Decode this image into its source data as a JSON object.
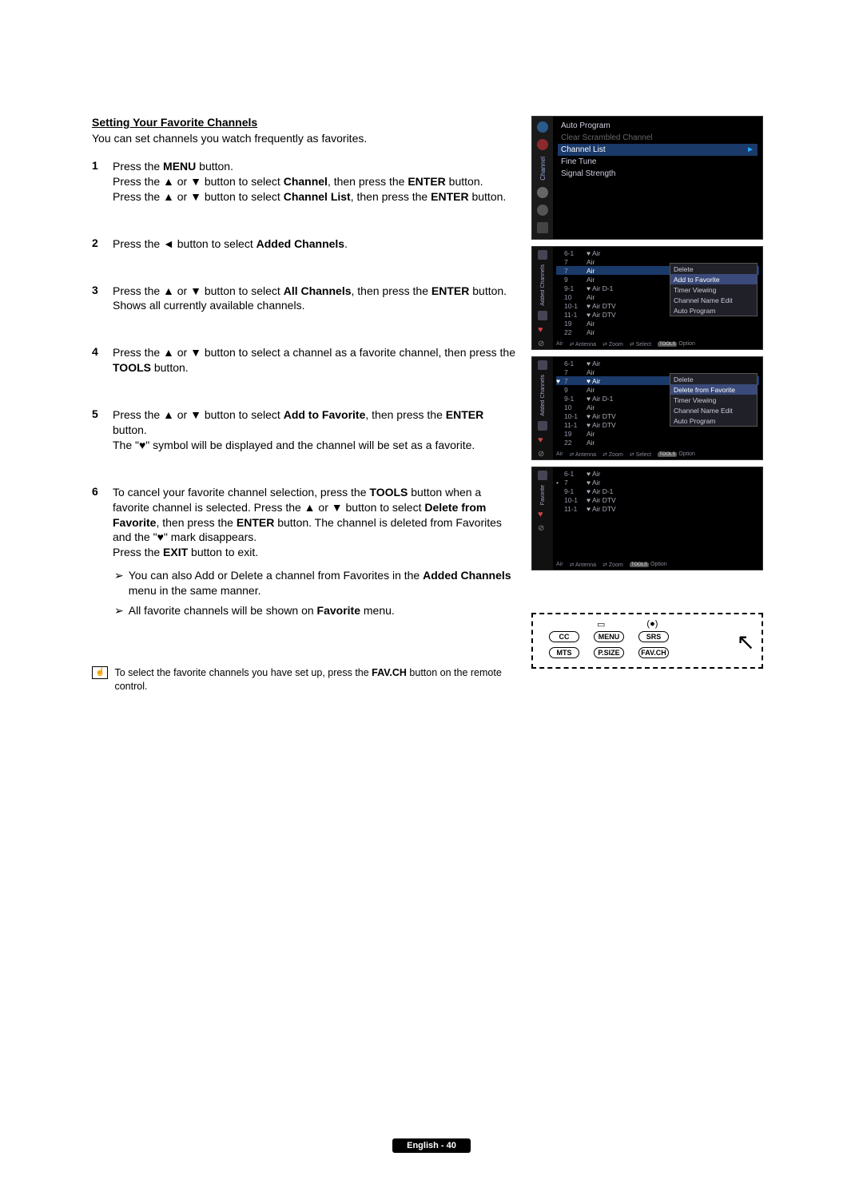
{
  "heading": "Setting Your Favorite Channels",
  "intro": "You can set channels you watch frequently as favorites.",
  "steps": {
    "s1": {
      "num": "1",
      "l1a": "Press the ",
      "l1b": "MENU",
      "l1c": " button.",
      "l2a": "Press the ▲ or ▼ button to select ",
      "l2b": "Channel",
      "l2c": ", then press the ",
      "l2d": "ENTER",
      "l2e": " button.",
      "l3a": "Press the ▲ or ▼ button to select ",
      "l3b": "Channel List",
      "l3c": ", then press the ",
      "l3d": "ENTER",
      "l3e": " button."
    },
    "s2": {
      "num": "2",
      "a": "Press the ◄ button to select ",
      "b": "Added Channels",
      "c": "."
    },
    "s3": {
      "num": "3",
      "a": "Press the ▲ or ▼ button to select ",
      "b": "All Channels",
      "c": ", then press the ",
      "d": "ENTER",
      "e": " button.",
      "f": "Shows all currently available channels."
    },
    "s4": {
      "num": "4",
      "a": "Press the ▲ or ▼ button to select a channel as a favorite channel, then press the ",
      "b": "TOOLS",
      "c": " button."
    },
    "s5": {
      "num": "5",
      "a": "Press the ▲ or ▼ button to select ",
      "b": "Add to Favorite",
      "c": ", then press the ",
      "d": "ENTER",
      "e": " button.",
      "f": "The \"♥\" symbol will be displayed and the channel will be set as a favorite."
    },
    "s6": {
      "num": "6",
      "a": "To cancel your favorite channel selection, press the ",
      "b": "TOOLS",
      "c": " button when a favorite channel is selected. Press the ▲ or ▼ button to select ",
      "d": "Delete from Favorite",
      "e": ", then press the ",
      "f": "ENTER",
      "g": " button. The channel is deleted from Favorites and the \"♥\" mark disappears.",
      "h": "Press the ",
      "i": "EXIT",
      "j": " button to exit."
    }
  },
  "bullets": {
    "b1a": "You can also Add or Delete a channel from Favorites in the ",
    "b1b": "Added Channels",
    "b1c": " menu in the same manner.",
    "b2a": "All favorite channels will be shown on ",
    "b2b": "Favorite",
    "b2c": " menu."
  },
  "note": {
    "a": "To select the favorite channels you have set up, press the ",
    "b": "FAV.CH",
    "c": " button on the remote control."
  },
  "footer": "English - 40",
  "osd_menu": {
    "tab": "Channel",
    "items": [
      "Auto Program",
      "Clear Scrambled Channel",
      "Channel List",
      "Fine Tune",
      "Signal Strength"
    ]
  },
  "added_list": {
    "tab": "Added Channels",
    "rows": [
      {
        "n": "6-1",
        "nm": "♥ Air"
      },
      {
        "n": "7",
        "nm": "Air"
      },
      {
        "n": "7",
        "nm": "Air",
        "sel": true
      },
      {
        "n": "9",
        "nm": "Air"
      },
      {
        "n": "9-1",
        "nm": "♥ Air D-1"
      },
      {
        "n": "10",
        "nm": "Air"
      },
      {
        "n": "10-1",
        "nm": "♥ Air DTV"
      },
      {
        "n": "11-1",
        "nm": "♥ Air DTV"
      },
      {
        "n": "19",
        "nm": "Air"
      },
      {
        "n": "22",
        "nm": "Air"
      }
    ],
    "popup": [
      "Delete",
      "Add to Favorite",
      "Timer Viewing",
      "Channel Name Edit",
      "Auto Program"
    ],
    "footer": {
      "src": "Air",
      "ant": "Antenna",
      "zoom": "Zoom",
      "sel": "Select",
      "opt": "Option",
      "tools": "TOOLS"
    }
  },
  "added_list2": {
    "tab": "Added Channels",
    "rows": [
      {
        "n": "6-1",
        "nm": "♥ Air"
      },
      {
        "n": "7",
        "nm": "Air"
      },
      {
        "n": "7",
        "nm": "♥ Air",
        "sel": true,
        "h": "♥"
      },
      {
        "n": "9",
        "nm": "Air"
      },
      {
        "n": "9-1",
        "nm": "♥ Air D-1"
      },
      {
        "n": "10",
        "nm": "Air"
      },
      {
        "n": "10-1",
        "nm": "♥ Air DTV"
      },
      {
        "n": "11-1",
        "nm": "♥ Air DTV"
      },
      {
        "n": "19",
        "nm": "Air"
      },
      {
        "n": "22",
        "nm": "Air"
      }
    ],
    "popup": [
      "Delete",
      "Delete from Favorite",
      "Timer Viewing",
      "Channel Name Edit",
      "Auto Program"
    ],
    "footer": {
      "src": "Air",
      "ant": "Antenna",
      "zoom": "Zoom",
      "sel": "Select",
      "opt": "Option",
      "tools": "TOOLS"
    }
  },
  "fav_list": {
    "tab": "Favorite",
    "rows": [
      {
        "n": "6-1",
        "nm": "♥ Air"
      },
      {
        "n": "7",
        "nm": "♥ Air",
        "h": "•"
      },
      {
        "n": "9-1",
        "nm": "♥ Air D-1"
      },
      {
        "n": "10-1",
        "nm": "♥ Air DTV"
      },
      {
        "n": "11-1",
        "nm": "♥ Air DTV"
      }
    ],
    "footer": {
      "src": "Air",
      "ant": "Antenna",
      "zoom": "Zoom",
      "opt": "Option",
      "tools": "TOOLS"
    }
  },
  "remote": {
    "row1": [
      "CC",
      "MENU",
      "SRS"
    ],
    "row2": [
      "MTS",
      "P.SIZE",
      "FAV.CH"
    ]
  },
  "colors": {
    "sel_bg": "#1a3a6a",
    "popup_sel": "#3a4a7a"
  }
}
